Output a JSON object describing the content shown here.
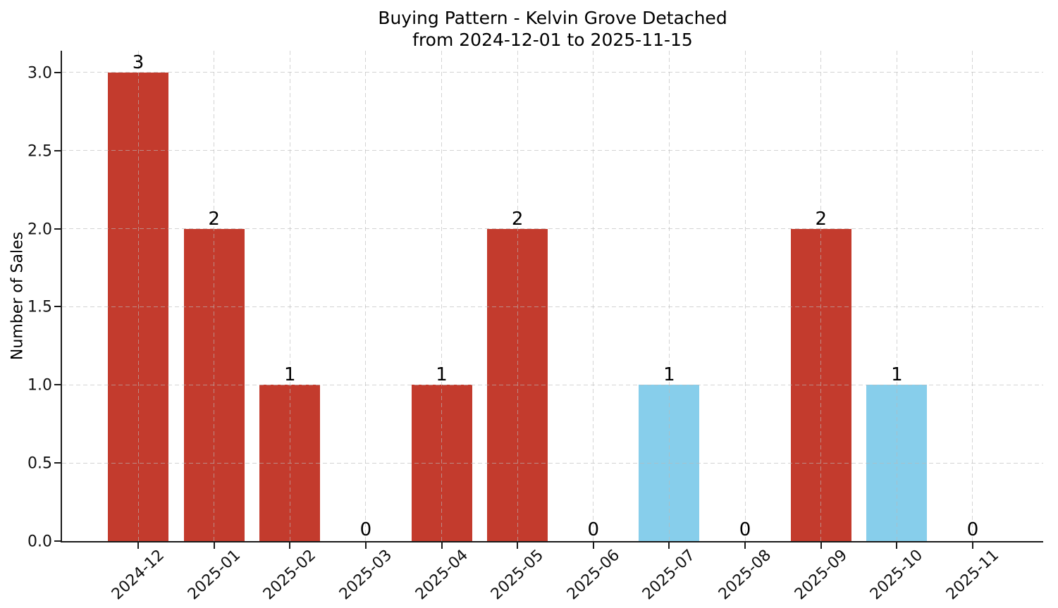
{
  "title": {
    "line1": "Buying Pattern - Kelvin Grove Detached",
    "line2": "from 2024-12-01 to 2025-11-15"
  },
  "chart_data": {
    "type": "bar",
    "title": "Buying Pattern - Kelvin Grove Detached\nfrom 2024-12-01 to 2025-11-15",
    "xlabel": "",
    "ylabel": "Number of Sales",
    "categories": [
      "2024-12",
      "2025-01",
      "2025-02",
      "2025-03",
      "2025-04",
      "2025-05",
      "2025-06",
      "2025-07",
      "2025-08",
      "2025-09",
      "2025-10",
      "2025-11"
    ],
    "values": [
      3,
      2,
      1,
      0,
      1,
      2,
      0,
      1,
      0,
      2,
      1,
      0
    ],
    "value_labels": [
      "3",
      "2",
      "1",
      "0",
      "1",
      "2",
      "0",
      "1",
      "0",
      "2",
      "1",
      "0"
    ],
    "bar_colors": [
      "#c33b2d",
      "#c33b2d",
      "#c33b2d",
      null,
      "#c33b2d",
      "#c33b2d",
      null,
      "#87ceeb",
      null,
      "#c33b2d",
      "#87ceeb",
      null
    ],
    "yticks": [
      0.0,
      0.5,
      1.0,
      1.5,
      2.0,
      2.5,
      3.0
    ],
    "ytick_labels": [
      "0.0",
      "0.5",
      "1.0",
      "1.5",
      "2.0",
      "2.5",
      "3.0"
    ],
    "ylim": [
      0,
      3.14
    ],
    "grid": true,
    "grid_style": "dashed",
    "legend_position": "none",
    "colors": {
      "red_bar": "#c33b2d",
      "blue_bar": "#87ceeb",
      "grid": "#d9d9d9",
      "axis": "#1a1a1a",
      "text": "#111111",
      "background": "#ffffff"
    }
  }
}
